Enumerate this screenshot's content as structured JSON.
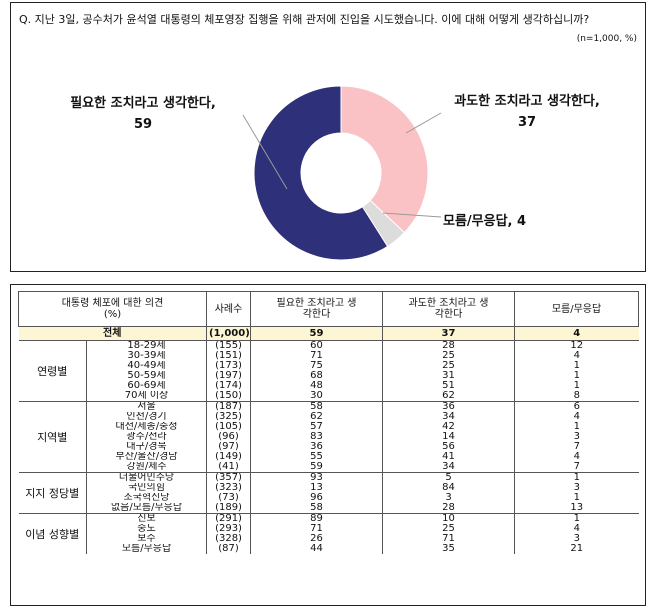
{
  "chart": {
    "question": "Q. 지난 3일, 공수처가 윤석열 대통령의 체포영장 집행을 위해 관저에 진입을 시도했습니다. 이에 대해 어떻게 생각하십니까?",
    "sample_note": "(n=1,000, %)"
  },
  "chart_data": {
    "type": "pie",
    "title": "",
    "slices": [
      {
        "label": "필요한 조치라고 생각한다,",
        "value": 59,
        "color": "#2e3079"
      },
      {
        "label": "과도한 조치라고 생각한다,",
        "value": 37,
        "color": "#fbc2c6"
      },
      {
        "label": "모름/무응답,",
        "value": 4,
        "color": "#dcdcdc"
      }
    ]
  },
  "table": {
    "headers": {
      "opinion": "대통령 체포에 대한 의견",
      "unit": "(%)",
      "cases": "사례수",
      "necessary": "필요한 조치라고 생각한다",
      "excessive": "과도한 조치라고 생각한다",
      "dk": "모름/무응답"
    },
    "total": {
      "label": "전체",
      "cases": "(1,000)",
      "necessary": "59",
      "excessive": "37",
      "dk": "4"
    },
    "groups": [
      {
        "name": "연령별",
        "rows": [
          {
            "label": "18-29세",
            "cases": "(155)",
            "necessary": "60",
            "excessive": "28",
            "dk": "12"
          },
          {
            "label": "30-39세",
            "cases": "(151)",
            "necessary": "71",
            "excessive": "25",
            "dk": "4"
          },
          {
            "label": "40-49세",
            "cases": "(173)",
            "necessary": "75",
            "excessive": "25",
            "dk": "1"
          },
          {
            "label": "50-59세",
            "cases": "(197)",
            "necessary": "68",
            "excessive": "31",
            "dk": "1"
          },
          {
            "label": "60-69세",
            "cases": "(174)",
            "necessary": "48",
            "excessive": "51",
            "dk": "1"
          },
          {
            "label": "70세 이상",
            "cases": "(150)",
            "necessary": "30",
            "excessive": "62",
            "dk": "8"
          }
        ]
      },
      {
        "name": "지역별",
        "rows": [
          {
            "label": "서울",
            "cases": "(187)",
            "necessary": "58",
            "excessive": "36",
            "dk": "6"
          },
          {
            "label": "인천/경기",
            "cases": "(325)",
            "necessary": "62",
            "excessive": "34",
            "dk": "4"
          },
          {
            "label": "대전/세종/충청",
            "cases": "(105)",
            "necessary": "57",
            "excessive": "42",
            "dk": "1"
          },
          {
            "label": "광주/전라",
            "cases": "(96)",
            "necessary": "83",
            "excessive": "14",
            "dk": "3"
          },
          {
            "label": "대구/경북",
            "cases": "(97)",
            "necessary": "36",
            "excessive": "56",
            "dk": "7"
          },
          {
            "label": "부산/울산/경남",
            "cases": "(149)",
            "necessary": "55",
            "excessive": "41",
            "dk": "4"
          },
          {
            "label": "강원/제주",
            "cases": "(41)",
            "necessary": "59",
            "excessive": "34",
            "dk": "7"
          }
        ]
      },
      {
        "name": "지지 정당별",
        "rows": [
          {
            "label": "더불어민주당",
            "cases": "(357)",
            "necessary": "93",
            "excessive": "5",
            "dk": "1"
          },
          {
            "label": "국민의힘",
            "cases": "(323)",
            "necessary": "13",
            "excessive": "84",
            "dk": "3"
          },
          {
            "label": "조국혁신당",
            "cases": "(73)",
            "necessary": "96",
            "excessive": "3",
            "dk": "1"
          },
          {
            "label": "없음/모름/무응답",
            "cases": "(189)",
            "necessary": "58",
            "excessive": "28",
            "dk": "13"
          }
        ]
      },
      {
        "name": "이념 성향별",
        "rows": [
          {
            "label": "진보",
            "cases": "(291)",
            "necessary": "89",
            "excessive": "10",
            "dk": "1"
          },
          {
            "label": "중도",
            "cases": "(293)",
            "necessary": "71",
            "excessive": "25",
            "dk": "4"
          },
          {
            "label": "보수",
            "cases": "(328)",
            "necessary": "26",
            "excessive": "71",
            "dk": "3"
          },
          {
            "label": "모름/무응답",
            "cases": "(87)",
            "necessary": "44",
            "excessive": "35",
            "dk": "21"
          }
        ]
      }
    ]
  }
}
